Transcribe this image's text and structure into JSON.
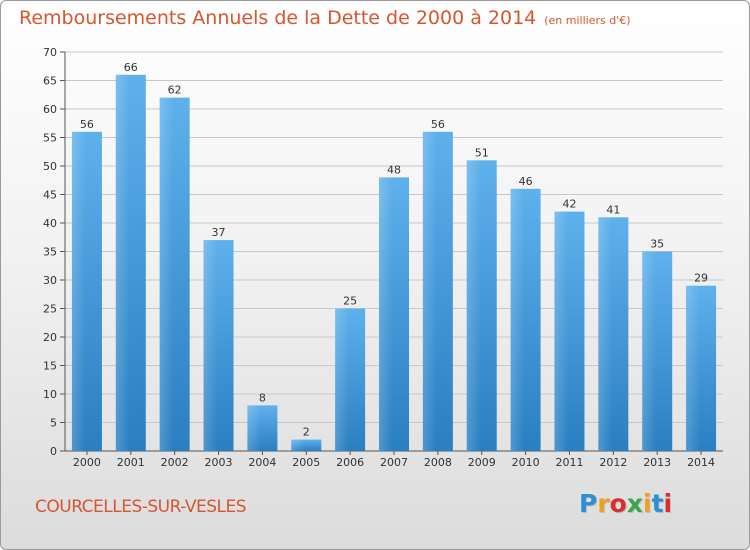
{
  "header": {
    "title": "Remboursements Annuels de la Dette de 2000 à 2014",
    "unit": "(en milliers d'€)"
  },
  "footer": {
    "commune": "COURCELLES-SUR-VESLES",
    "logo_letters": [
      "P",
      "r",
      "o",
      "x",
      "i",
      "t",
      "i"
    ],
    "logo_colors": [
      "#2a8fd6",
      "#f0a020",
      "#d8302e",
      "#3aa64a",
      "#f0a020",
      "#2a8fd6",
      "#d8302e"
    ]
  },
  "chart_data": {
    "type": "bar",
    "categories": [
      "2000",
      "2001",
      "2002",
      "2003",
      "2004",
      "2005",
      "2006",
      "2007",
      "2008",
      "2009",
      "2010",
      "2011",
      "2012",
      "2013",
      "2014"
    ],
    "values": [
      56,
      66,
      62,
      37,
      8,
      2,
      25,
      48,
      56,
      51,
      46,
      42,
      41,
      35,
      29
    ],
    "ylim": [
      0,
      70
    ],
    "yticks": [
      0,
      5,
      10,
      15,
      20,
      25,
      30,
      35,
      40,
      45,
      50,
      55,
      60,
      65,
      70
    ],
    "grid": true,
    "bar_color": "#3a97dd"
  }
}
